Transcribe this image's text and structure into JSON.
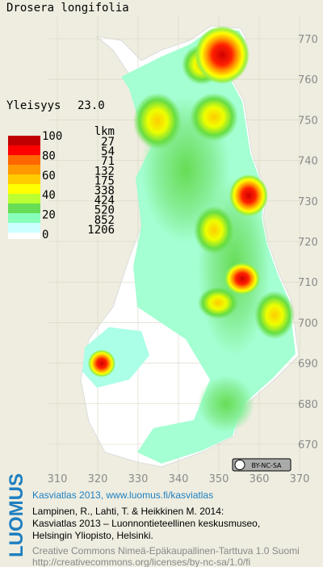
{
  "title": "Drosera longifolia",
  "frequency": {
    "label": "Yleisyys",
    "value": "23.0"
  },
  "legend": {
    "scale": [
      100,
      80,
      60,
      40,
      20,
      0
    ],
    "count_header": "lkm",
    "counts": [
      27,
      54,
      71,
      132,
      175,
      338,
      424,
      520,
      852,
      1206
    ]
  },
  "x_axis": [
    310,
    320,
    330,
    340,
    350,
    360,
    370
  ],
  "y_axis": [
    770,
    760,
    750,
    740,
    730,
    720,
    710,
    700,
    690,
    680,
    670
  ],
  "license_badge": "BY-NC-SA",
  "footer": {
    "logo": "LUOMUS",
    "heading": "Kasviatlas 2013, www.luomus.fi/kasviatlas",
    "citation": [
      "Lampinen, R., Lahti, T. & Heikkinen M. 2014:",
      "Kasviatlas 2013 – Luonnontieteellinen keskusmuseo,",
      "Helsingin Yliopisto, Helsinki."
    ],
    "license": [
      "Creative Commons Nimeä-Epäkaupallinen-Tarttuva 1.0 Suomi",
      "http://creativecommons.org/licenses/by-nc-sa/1.0/fi"
    ]
  }
}
